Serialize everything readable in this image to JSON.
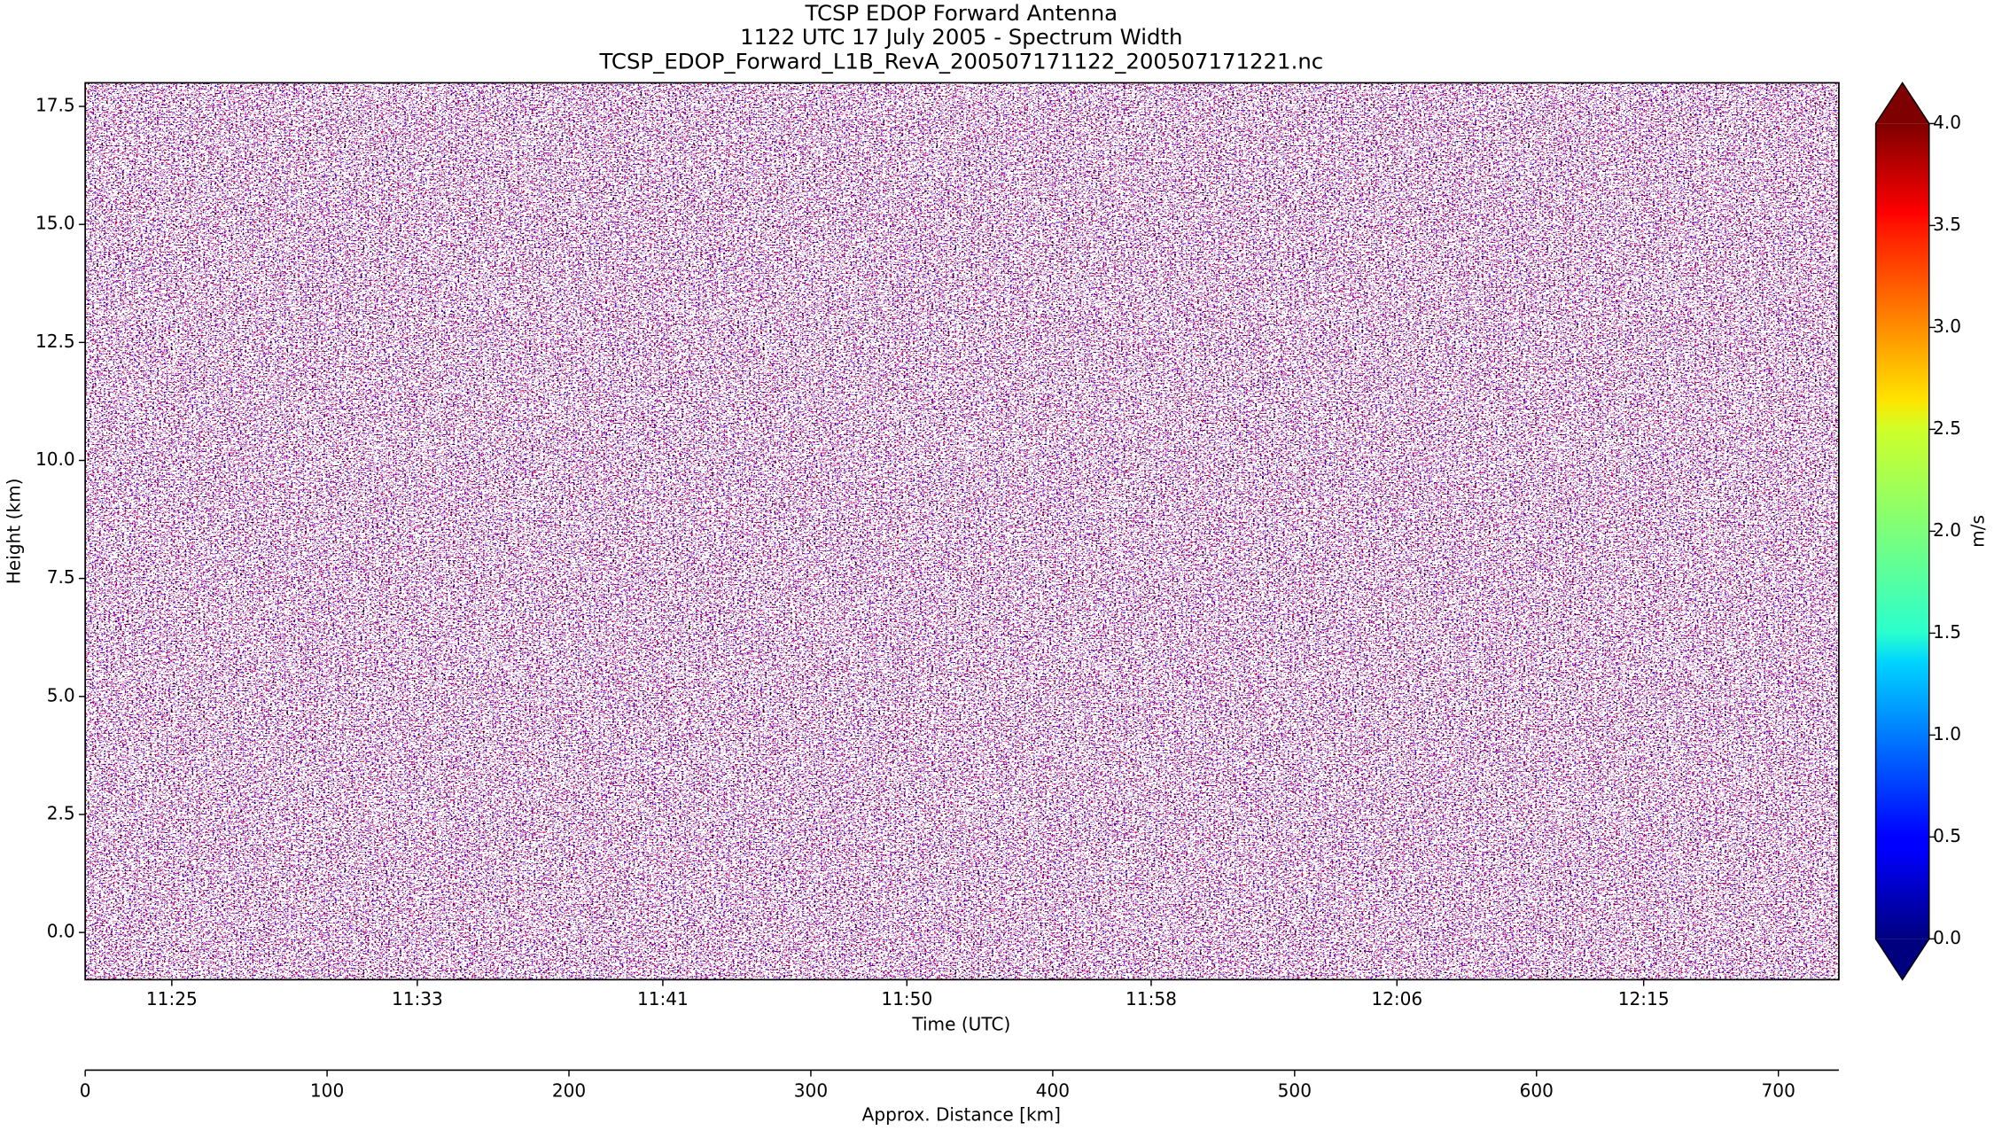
{
  "chart_data": {
    "type": "heatmap",
    "title": [
      "TCSP EDOP Forward Antenna",
      "1122 UTC 17 July 2005 - Spectrum Width",
      "TCSP_EDOP_Forward_L1B_RevA_200507171122_200507171221.nc"
    ],
    "ylabel": "Height (km)",
    "ylim": [
      -1,
      18
    ],
    "yticks": [
      {
        "value": 0,
        "label": "0.0"
      },
      {
        "value": 2.5,
        "label": "2.5"
      },
      {
        "value": 5,
        "label": "5.0"
      },
      {
        "value": 7.5,
        "label": "7.5"
      },
      {
        "value": 10,
        "label": "10.0"
      },
      {
        "value": 12.5,
        "label": "12.5"
      },
      {
        "value": 15,
        "label": "15.0"
      },
      {
        "value": 17.5,
        "label": "17.5"
      }
    ],
    "xlabel": "Time (UTC)",
    "time_ticks": [
      {
        "value": 35.8,
        "label": "11:25"
      },
      {
        "value": 137.3,
        "label": "11:33"
      },
      {
        "value": 238.8,
        "label": "11:41"
      },
      {
        "value": 339.7,
        "label": "11:50"
      },
      {
        "value": 440.7,
        "label": "11:58"
      },
      {
        "value": 542.3,
        "label": "12:06"
      },
      {
        "value": 644.3,
        "label": "12:15"
      }
    ],
    "x2label": "Approx. Distance [km]",
    "xlim": [
      0,
      725
    ],
    "xticks": [
      0,
      100,
      200,
      300,
      400,
      500,
      600,
      700
    ],
    "colormap": "jet",
    "colorbar": {
      "label": "m/s",
      "lim": [
        0,
        4
      ],
      "ticks": [
        {
          "value": 0,
          "label": "0.0"
        },
        {
          "value": 0.5,
          "label": "0.5"
        },
        {
          "value": 1,
          "label": "1.0"
        },
        {
          "value": 1.5,
          "label": "1.5"
        },
        {
          "value": 2,
          "label": "2.0"
        },
        {
          "value": 2.5,
          "label": "2.5"
        },
        {
          "value": 3,
          "label": "3.0"
        },
        {
          "value": 3.5,
          "label": "3.5"
        },
        {
          "value": 4,
          "label": "4.0"
        }
      ]
    }
  }
}
